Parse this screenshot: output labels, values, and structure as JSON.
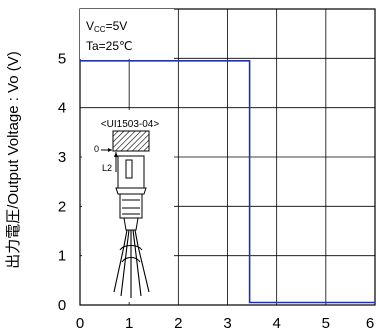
{
  "chart_data": {
    "type": "line",
    "ylabel": "出力電圧/Output Voltage : Vo (V)",
    "xlim": [
      0,
      6
    ],
    "ylim": [
      0,
      6
    ],
    "grid": true,
    "x_ticks": [
      "0",
      "1",
      "2",
      "3",
      "4",
      "5",
      "6"
    ],
    "y_ticks": [
      "0",
      "1",
      "2",
      "3",
      "4",
      "5"
    ],
    "conditions": {
      "vcc_base": "V",
      "vcc_sub": "CC",
      "vcc_value": "=5V",
      "ta": "Ta=25℃"
    },
    "inset": {
      "part_label": "<UI1503-04>",
      "origin_label": "0",
      "l2_label": "L2"
    },
    "series": [
      {
        "color": "#2233aa",
        "x": [
          0,
          3.45,
          3.45,
          6
        ],
        "y": [
          4.95,
          4.95,
          0.05,
          0.05
        ]
      }
    ]
  }
}
